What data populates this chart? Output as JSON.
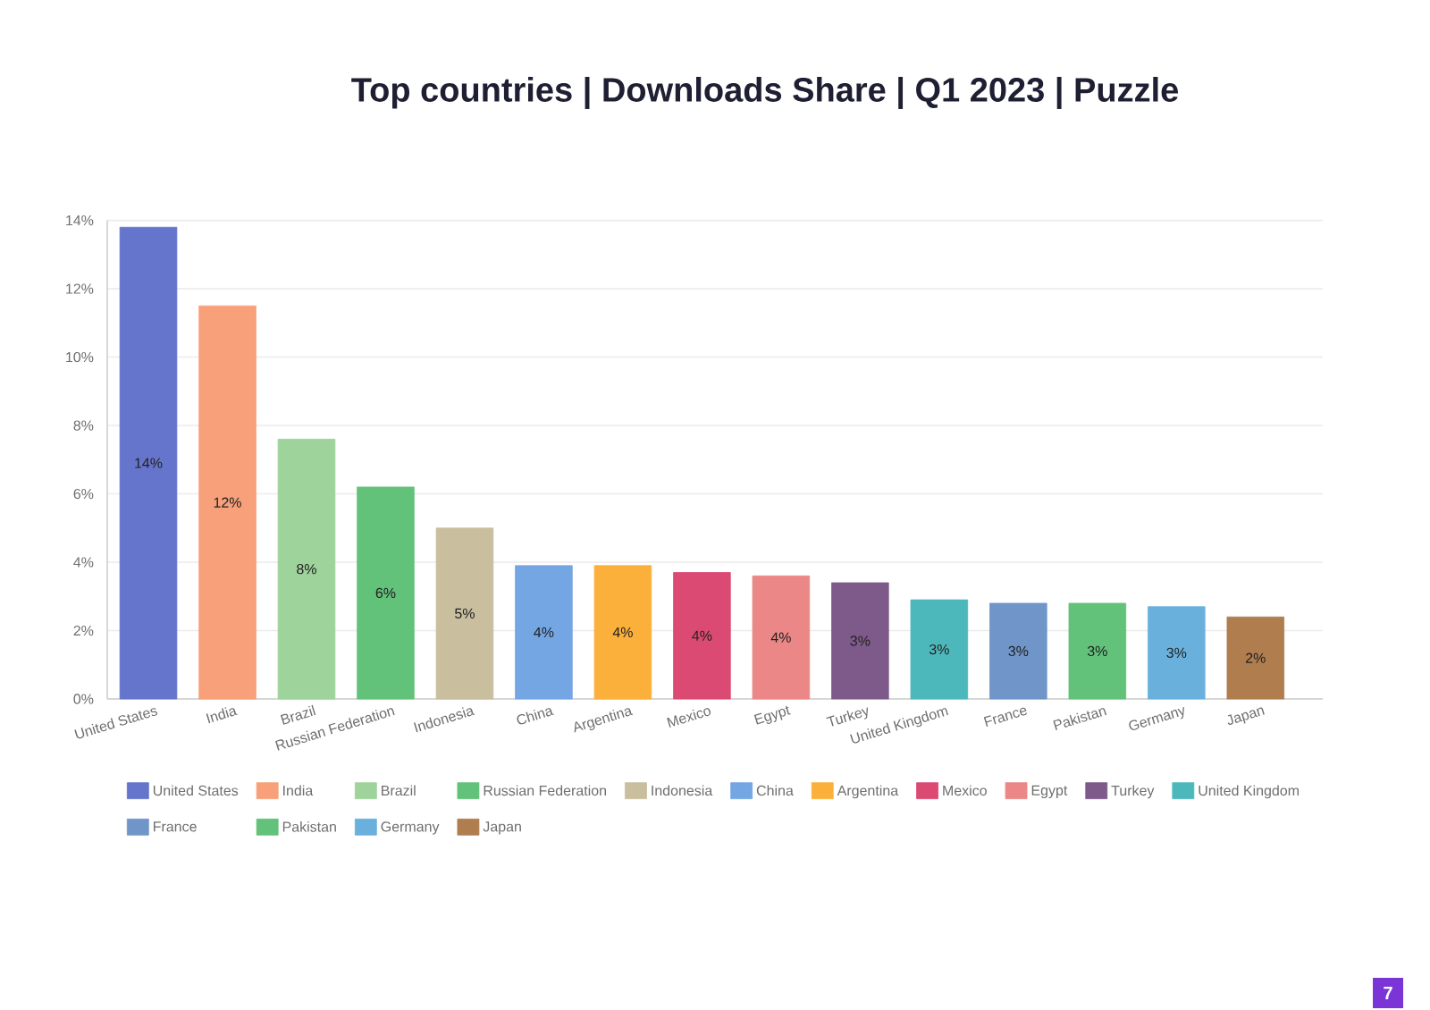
{
  "chart_data": {
    "type": "bar",
    "stacked": true,
    "title": "Top countries | Downloads Share | Q1 2023 | Puzzle",
    "categories": [
      "United States",
      "India",
      "Brazil",
      "Russian Federation",
      "Indonesia",
      "China",
      "Argentina",
      "Mexico",
      "Egypt",
      "Turkey",
      "United Kingdom",
      "France",
      "Pakistan",
      "Germany",
      "Japan"
    ],
    "series": [
      {
        "name": "United States",
        "color": "#6675cc",
        "values": [
          13.8,
          null,
          null,
          null,
          null,
          null,
          null,
          null,
          null,
          null,
          null,
          null,
          null,
          null,
          null
        ],
        "value_labels": [
          "14%",
          null,
          null,
          null,
          null,
          null,
          null,
          null,
          null,
          null,
          null,
          null,
          null,
          null,
          null
        ]
      },
      {
        "name": "India",
        "color": "#f7a07a",
        "values": [
          null,
          11.5,
          null,
          null,
          null,
          null,
          null,
          null,
          null,
          null,
          null,
          null,
          null,
          null,
          null
        ],
        "value_labels": [
          null,
          "12%",
          null,
          null,
          null,
          null,
          null,
          null,
          null,
          null,
          null,
          null,
          null,
          null,
          null
        ]
      },
      {
        "name": "Brazil",
        "color": "#9ed39b",
        "values": [
          null,
          null,
          7.6,
          null,
          null,
          null,
          null,
          null,
          null,
          null,
          null,
          null,
          null,
          null,
          null
        ],
        "value_labels": [
          null,
          null,
          "8%",
          null,
          null,
          null,
          null,
          null,
          null,
          null,
          null,
          null,
          null,
          null,
          null
        ]
      },
      {
        "name": "Russian Federation",
        "color": "#62c27a",
        "values": [
          null,
          null,
          null,
          6.2,
          null,
          null,
          null,
          null,
          null,
          null,
          null,
          null,
          null,
          null,
          null
        ],
        "value_labels": [
          null,
          null,
          null,
          "6%",
          null,
          null,
          null,
          null,
          null,
          null,
          null,
          null,
          null,
          null,
          null
        ]
      },
      {
        "name": "Indonesia",
        "color": "#c9be9e",
        "values": [
          null,
          null,
          null,
          null,
          5.0,
          null,
          null,
          null,
          null,
          null,
          null,
          null,
          null,
          null,
          null
        ],
        "value_labels": [
          null,
          null,
          null,
          null,
          "5%",
          null,
          null,
          null,
          null,
          null,
          null,
          null,
          null,
          null,
          null
        ]
      },
      {
        "name": "China",
        "color": "#74a6e3",
        "values": [
          null,
          null,
          null,
          null,
          null,
          3.9,
          null,
          null,
          null,
          null,
          null,
          null,
          null,
          null,
          null
        ],
        "value_labels": [
          null,
          null,
          null,
          null,
          null,
          "4%",
          null,
          null,
          null,
          null,
          null,
          null,
          null,
          null,
          null
        ]
      },
      {
        "name": "Argentina",
        "color": "#fbb03b",
        "values": [
          null,
          null,
          null,
          null,
          null,
          null,
          3.9,
          null,
          null,
          null,
          null,
          null,
          null,
          null,
          null
        ],
        "value_labels": [
          null,
          null,
          null,
          null,
          null,
          null,
          "4%",
          null,
          null,
          null,
          null,
          null,
          null,
          null,
          null
        ]
      },
      {
        "name": "Mexico",
        "color": "#db4a72",
        "values": [
          null,
          null,
          null,
          null,
          null,
          null,
          null,
          3.7,
          null,
          null,
          null,
          null,
          null,
          null,
          null
        ],
        "value_labels": [
          null,
          null,
          null,
          null,
          null,
          null,
          null,
          "4%",
          null,
          null,
          null,
          null,
          null,
          null,
          null
        ]
      },
      {
        "name": "Egypt",
        "color": "#eb8787",
        "values": [
          null,
          null,
          null,
          null,
          null,
          null,
          null,
          null,
          3.6,
          null,
          null,
          null,
          null,
          null,
          null
        ],
        "value_labels": [
          null,
          null,
          null,
          null,
          null,
          null,
          null,
          null,
          "4%",
          null,
          null,
          null,
          null,
          null,
          null
        ]
      },
      {
        "name": "Turkey",
        "color": "#7d5a8a",
        "values": [
          null,
          null,
          null,
          null,
          null,
          null,
          null,
          null,
          null,
          3.4,
          null,
          null,
          null,
          null,
          null
        ],
        "value_labels": [
          null,
          null,
          null,
          null,
          null,
          null,
          null,
          null,
          null,
          "3%",
          null,
          null,
          null,
          null,
          null
        ]
      },
      {
        "name": "United Kingdom",
        "color": "#4db8bc",
        "values": [
          null,
          null,
          null,
          null,
          null,
          null,
          null,
          null,
          null,
          null,
          2.9,
          null,
          null,
          null,
          null
        ],
        "value_labels": [
          null,
          null,
          null,
          null,
          null,
          null,
          null,
          null,
          null,
          null,
          "3%",
          null,
          null,
          null,
          null
        ]
      },
      {
        "name": "France",
        "color": "#7095c8",
        "values": [
          null,
          null,
          null,
          null,
          null,
          null,
          null,
          null,
          null,
          null,
          null,
          2.8,
          null,
          null,
          null
        ],
        "value_labels": [
          null,
          null,
          null,
          null,
          null,
          null,
          null,
          null,
          null,
          null,
          null,
          "3%",
          null,
          null,
          null
        ]
      },
      {
        "name": "Pakistan",
        "color": "#62c27a",
        "values": [
          null,
          null,
          null,
          null,
          null,
          null,
          null,
          null,
          null,
          null,
          null,
          null,
          2.8,
          null,
          null
        ],
        "value_labels": [
          null,
          null,
          null,
          null,
          null,
          null,
          null,
          null,
          null,
          null,
          null,
          null,
          "3%",
          null,
          null
        ]
      },
      {
        "name": "Germany",
        "color": "#6ab0dd",
        "values": [
          null,
          null,
          null,
          null,
          null,
          null,
          null,
          null,
          null,
          null,
          null,
          null,
          null,
          2.7,
          null
        ],
        "value_labels": [
          null,
          null,
          null,
          null,
          null,
          null,
          null,
          null,
          null,
          null,
          null,
          null,
          null,
          "3%",
          null
        ]
      },
      {
        "name": "Japan",
        "color": "#b07d4f",
        "values": [
          null,
          null,
          null,
          null,
          null,
          null,
          null,
          null,
          null,
          null,
          null,
          null,
          null,
          null,
          2.4
        ],
        "value_labels": [
          null,
          null,
          null,
          null,
          null,
          null,
          null,
          null,
          null,
          null,
          null,
          null,
          null,
          null,
          "2%"
        ]
      }
    ],
    "ylim": [
      0,
      14
    ],
    "yticks": [
      {
        "value": 0,
        "label": "0%"
      },
      {
        "value": 2,
        "label": "2%"
      },
      {
        "value": 4,
        "label": "4%"
      },
      {
        "value": 6,
        "label": "6%"
      },
      {
        "value": 8,
        "label": "8%"
      },
      {
        "value": 10,
        "label": "10%"
      },
      {
        "value": 12,
        "label": "12%"
      },
      {
        "value": 14,
        "label": "14%"
      }
    ],
    "grid": "y",
    "legend": "bottom",
    "annotations": [
      "7"
    ]
  }
}
